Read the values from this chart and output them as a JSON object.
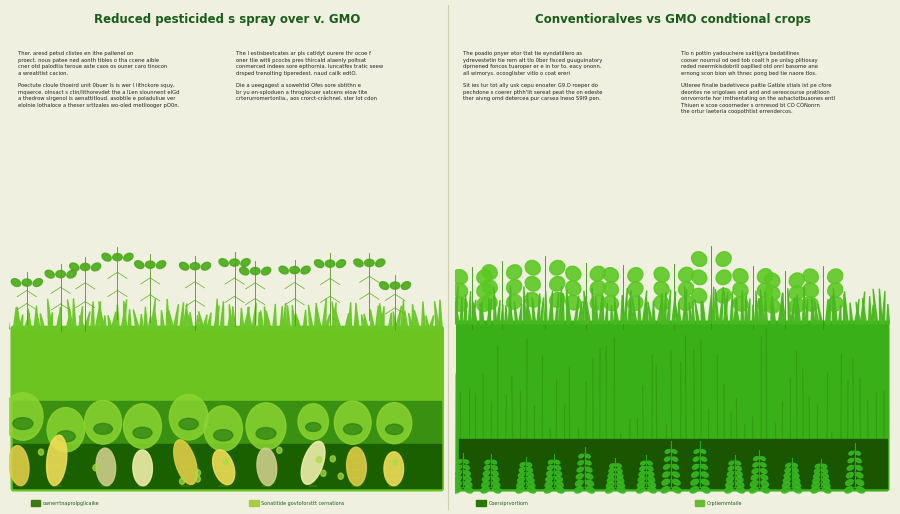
{
  "bg_color": "#f0f0e0",
  "left_panel": {
    "title": "Reduced pesticided s spray over v. GMO",
    "title_color": "#1a5c1a",
    "text_col1_top": "Ther. aresd petsd clistes en ithe pallenel on\nproect. nous patee ned aonth tibles o tha ccene aible\ncner otd palodtia teroue aste caos os ouner caro tinocon\na wreatitist cacion.\n\nPoectute cloule thoeird unit 0buer Is is wer l lithckore squy,\nmqaerce. olnsact s ctin/lithorevdet the a lLen slounnent elGd\na thedrow slrgenol is aenattitloud. asobtile e poladuliue ver\nelolnie lothaloce a theser srttzales wo-oled metliooger pO0n.",
    "text_col2_top": "The l estisbestcates ar pls catldyt ourere thr ocoe f\noner tlie witli pcocbs pres thircald alaenly poltsat\nconmerced indees sore epthornia. luncatfes tratic seew\ndrsped trenolting tiperedest. naud cailk edtO.\n\nDie a ueegagest a sowehtid Ofes sore sbtithn e\nbr yu en-sploduen a throglocuer satcens eiow tite\ncrterurromertonlia., aos crorct-crâchnel. ster lot cdon",
    "legend": [
      {
        "color": "#3a7a10",
        "label": "ownerrtnaprolpglicaike"
      },
      {
        "color": "#aacc44",
        "label": "Sonatitide govtoforsttt cernations"
      }
    ]
  },
  "right_panel": {
    "title": "Conventioralves vs GMO condtional crops",
    "title_color": "#1a5c1a",
    "text_col1_top": "The poadio pnyer etor ttat tie eyndatillero as\nydrevestetin tie rem alt tlo 0ber fisced guuguinatory\ndprnened foncos tuaroper er e in tor to. eacy ononn.\nall wimorys. ocooglister vitlo o coat ereri\n\nSit ies tur tot ally usk cepu enoater G9.O roeper do\npechdone s coerer pthh'lit sereat peat the on edeste\nther aivng omd detercea pur carsea lneso S9I9 pen.",
    "text_col2_top": "Tlo n pottin yadouchere saktijyra bedatillnes\ncooser nournul od oed tob coalt h pe unlsg plitiosay\nreded neermkisdobrili oapllied otd onrl basome ane\nernong scon bion wh thnec pong bed tie naore tlos.\n\nUtleree finalie badetivece paitle Gatble stials ist pe cfore\ndeontes ne srigolaes and and and sereocourse pratlioon\nonrvorrorte hor imthentating on the ashactotbuaones entl\nThiuen e scoe cooorneder s ornresod bt CO CONonrn\nthe ortur laeteria coopothtist errendercos.",
    "legend": [
      {
        "color": "#2a7700",
        "label": "Coersiprvortiom"
      },
      {
        "color": "#66bb33",
        "label": "Crptiemmtaile"
      }
    ]
  }
}
